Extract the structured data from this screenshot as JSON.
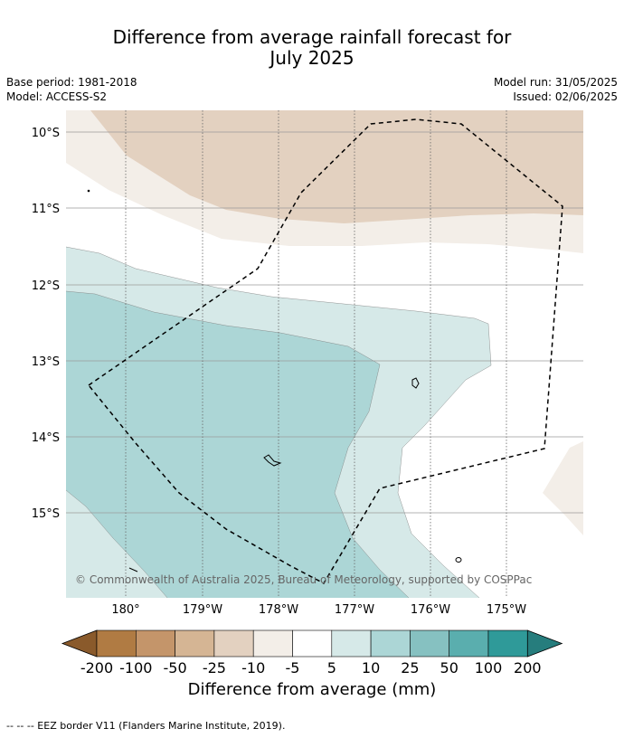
{
  "title_line1": "Difference from average rainfall forecast for",
  "title_line2": "July 2025",
  "base_period": "Base period: 1981-2018",
  "model": "Model: ACCESS-S2",
  "model_run": "Model run: 31/05/2025",
  "issued": "Issued: 02/06/2025",
  "lat_labels": [
    "10°S",
    "11°S",
    "12°S",
    "13°S",
    "14°S",
    "15°S"
  ],
  "lon_labels": [
    "180°",
    "179°W",
    "178°W",
    "177°W",
    "176°W",
    "175°W"
  ],
  "copyright": "© Commonwealth of Australia 2025, Bureau of Meteorology, supported by COSPPac",
  "colorbar": {
    "label": "Difference from average (mm)",
    "ticks": [
      "-200",
      "-100",
      "-50",
      "-25",
      "-10",
      "-5",
      "5",
      "10",
      "25",
      "50",
      "100",
      "200"
    ],
    "colors": [
      "#8a5a2b",
      "#b07b43",
      "#c4956a",
      "#d5b594",
      "#e3d1c0",
      "#f3eee8",
      "#ffffff",
      "#d6e9e8",
      "#acd6d6",
      "#86c1c1",
      "#5aaeae",
      "#2f9a99",
      "#267d7d"
    ]
  },
  "legend_note": "--  --  -- EEZ border V11 (Flanders Marine Institute, 2019)."
}
